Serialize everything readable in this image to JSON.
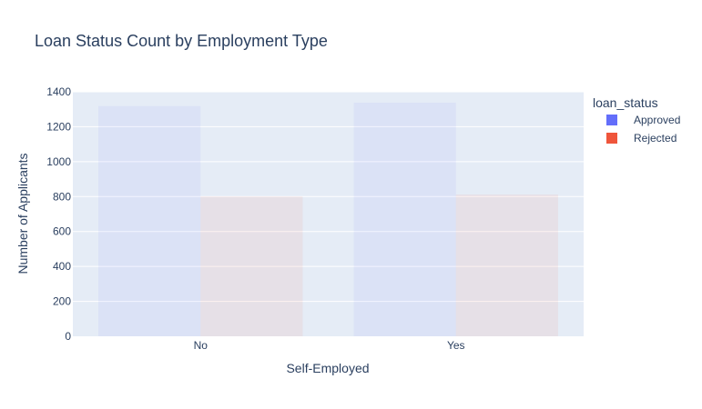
{
  "chart_data": {
    "type": "bar",
    "title": "Loan Status Count by Employment Type",
    "xlabel": "Self-Employed",
    "ylabel": "Number of Applicants",
    "categories": [
      "No",
      "Yes"
    ],
    "ylim": [
      0,
      1400
    ],
    "yticks": [
      0,
      200,
      400,
      600,
      800,
      1000,
      1200,
      1400
    ],
    "grid": true,
    "legend_title": "loan_status",
    "legend_position": "right",
    "plot_background": "#e5ecf6",
    "series": [
      {
        "name": "Approved",
        "values": [
          1318,
          1338
        ],
        "color": "#636efa"
      },
      {
        "name": "Rejected",
        "values": [
          801,
          812
        ],
        "color": "#ef553b"
      }
    ]
  }
}
